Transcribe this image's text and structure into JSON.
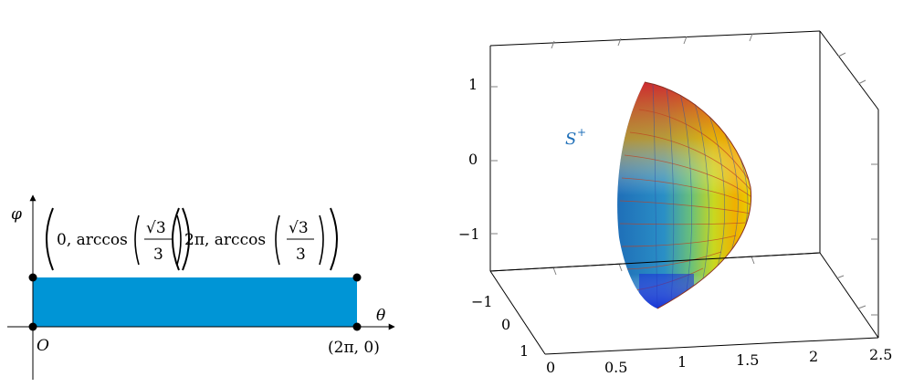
{
  "left_diagram": {
    "axis_y_label": "φ",
    "axis_x_label": "θ",
    "origin_label": "O",
    "point_bottom_right": "(2π, 0)",
    "point_top_left": "(0, arccos(√3/3))",
    "point_top_right": "(2π, arccos(√3/3))",
    "top_left_parts": [
      "0, arccos",
      "√3",
      "3"
    ],
    "top_right_parts": [
      "2π, arccos",
      "√3",
      "3"
    ],
    "region_color": "#0095D6"
  },
  "right_plot": {
    "surface_label": "S",
    "surface_label_sup": "+",
    "surface_label_color": "#1f6fb8",
    "z_ticks": [
      "1",
      "0",
      "−1"
    ],
    "y_ticks": [
      "−1",
      "0",
      "1"
    ],
    "x_ticks": [
      "0",
      "0.5",
      "1",
      "1.5",
      "2",
      "2.5"
    ],
    "colormap": [
      "#0b2bd6",
      "#1f6fb8",
      "#2ab0c0",
      "#7ad070",
      "#e8e000",
      "#f0a000",
      "#e02020"
    ]
  }
}
